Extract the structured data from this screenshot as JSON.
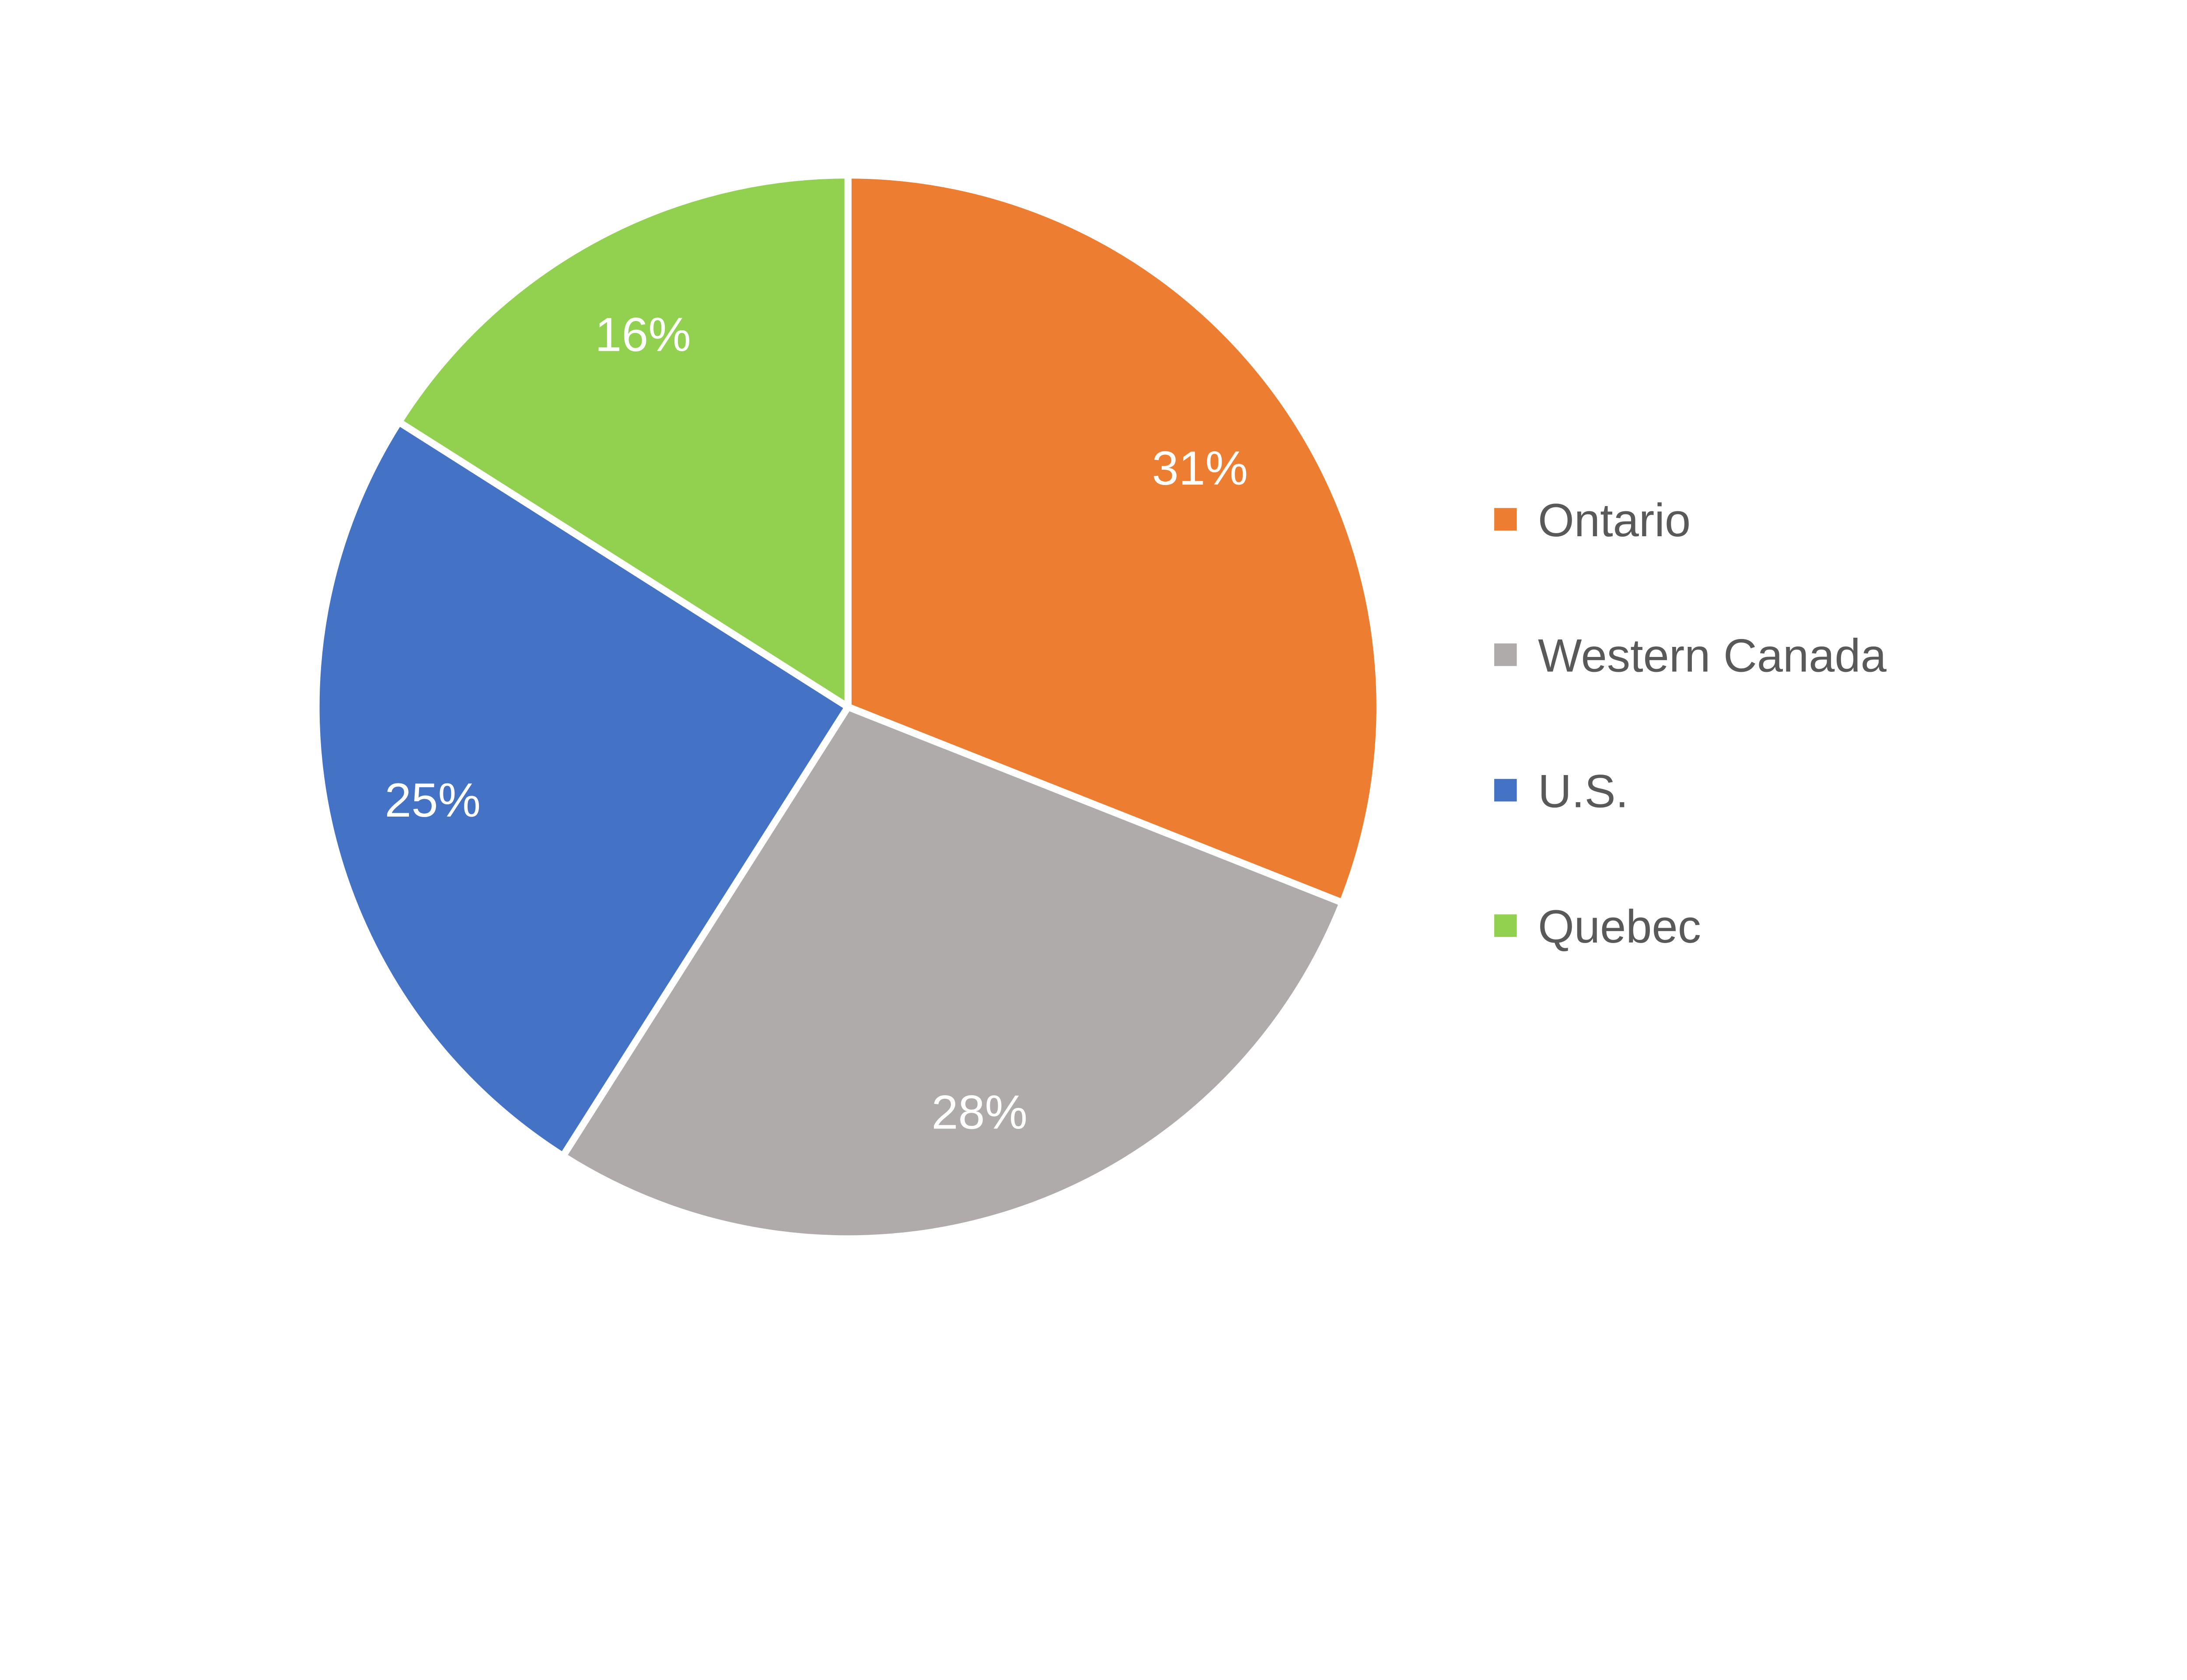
{
  "chart_data": {
    "type": "pie",
    "categories": [
      "Ontario",
      "Western Canada",
      "U.S.",
      "Quebec"
    ],
    "values": [
      31,
      28,
      25,
      16
    ],
    "data_labels": [
      "31%",
      "28%",
      "25%",
      "16%"
    ],
    "colors": [
      "#ED7D31",
      "#AFABAB",
      "#4472C4",
      "#92D050"
    ],
    "start_angle": "12 o'clock",
    "direction": "clockwise",
    "legend_position": "right",
    "title": ""
  }
}
